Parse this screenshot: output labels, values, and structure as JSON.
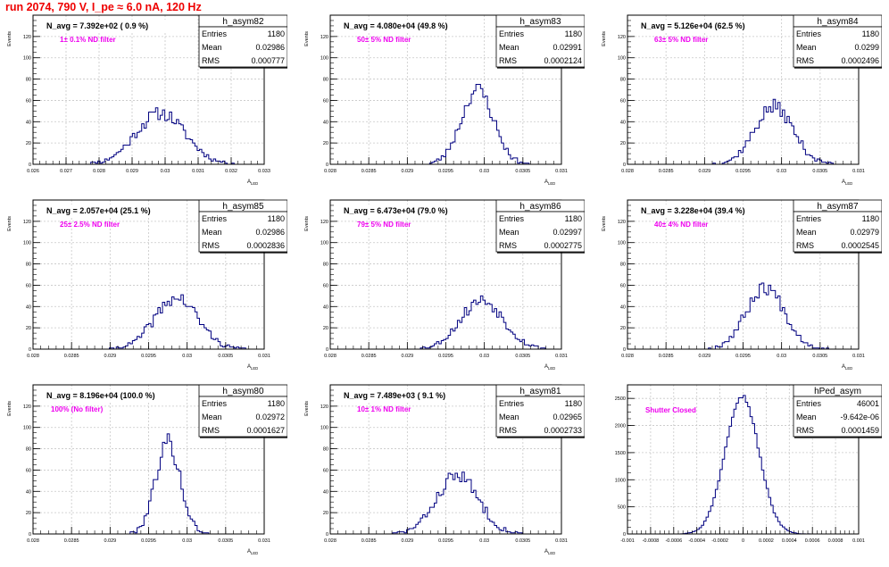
{
  "header": {
    "run_title": "run 2074,   790 V, I_pe ≈ 6.0 nA, 120 Hz"
  },
  "colors": {
    "histogram_line": "#000080",
    "annotation": "#ee00ee",
    "title": "#ee0000",
    "axes": "#000000",
    "grid": "#c8c8c8"
  },
  "chart_data": [
    {
      "type": "histogram",
      "hist_name": "h_asym82",
      "n_avg_label": "N_avg = 7.392e+02 ( 0.9 %)",
      "filter_label": "1± 0.1% ND filter",
      "stats": [
        [
          "Entries",
          "1180"
        ],
        [
          "Mean",
          "0.02986"
        ],
        [
          "RMS",
          "0.000777"
        ]
      ],
      "ylabel": "Events",
      "xlabel": "A_LED",
      "grid": true,
      "xlim": [
        0.026,
        0.033
      ],
      "ylim": [
        0,
        140
      ],
      "xticks": [
        "0.026",
        "0.027",
        "0.028",
        "0.029",
        "0.03",
        "0.031",
        "0.032",
        "0.033"
      ],
      "xtick_values": [
        0.026,
        0.027,
        0.028,
        0.029,
        0.03,
        0.031,
        0.032,
        0.033
      ],
      "yticks": [
        0,
        20,
        40,
        60,
        80,
        100,
        120
      ],
      "bin_width": 7e-05,
      "peaks": [
        {
          "mean": 0.02986,
          "sigma": 0.00075,
          "amp": 48
        }
      ],
      "seed": 11
    },
    {
      "type": "histogram",
      "hist_name": "h_asym83",
      "n_avg_label": "N_avg = 4.080e+04 (49.8 %)",
      "filter_label": "50± 5% ND filter",
      "stats": [
        [
          "Entries",
          "1180"
        ],
        [
          "Mean",
          "0.02991"
        ],
        [
          "RMS",
          "0.0002124"
        ]
      ],
      "ylabel": "Events",
      "xlabel": "A_LED",
      "grid": true,
      "xlim": [
        0.028,
        0.031
      ],
      "ylim": [
        0,
        140
      ],
      "xticks": [
        "0.028",
        "0.0285",
        "0.029",
        "0.0295",
        "0.03",
        "0.0305",
        "0.031"
      ],
      "xtick_values": [
        0.028,
        0.0285,
        0.029,
        0.0295,
        0.03,
        0.0305,
        0.031
      ],
      "yticks": [
        0,
        20,
        40,
        60,
        80,
        100,
        120
      ],
      "bin_width": 3e-05,
      "peaks": [
        {
          "mean": 0.02991,
          "sigma": 0.00021,
          "amp": 70
        }
      ],
      "seed": 23
    },
    {
      "type": "histogram",
      "hist_name": "h_asym84",
      "n_avg_label": "N_avg = 5.126e+04 (62.5 %)",
      "filter_label": "63± 5% ND filter",
      "stats": [
        [
          "Entries",
          "1180"
        ],
        [
          "Mean",
          "0.0299"
        ],
        [
          "RMS",
          "0.0002496"
        ]
      ],
      "ylabel": "Events",
      "xlabel": "A_LED",
      "grid": true,
      "xlim": [
        0.028,
        0.031
      ],
      "ylim": [
        0,
        140
      ],
      "xticks": [
        "0.028",
        "0.0285",
        "0.029",
        "0.0295",
        "0.03",
        "0.0305",
        "0.031"
      ],
      "xtick_values": [
        0.028,
        0.0285,
        0.029,
        0.0295,
        0.03,
        0.0305,
        0.031
      ],
      "yticks": [
        0,
        20,
        40,
        60,
        80,
        100,
        120
      ],
      "bin_width": 3e-05,
      "peaks": [
        {
          "mean": 0.0299,
          "sigma": 0.00025,
          "amp": 54
        }
      ],
      "seed": 37
    },
    {
      "type": "histogram",
      "hist_name": "h_asym85",
      "n_avg_label": "N_avg = 2.057e+04 (25.1 %)",
      "filter_label": "25± 2.5% ND filter",
      "stats": [
        [
          "Entries",
          "1180"
        ],
        [
          "Mean",
          "0.02986"
        ],
        [
          "RMS",
          "0.0002836"
        ]
      ],
      "ylabel": "Events",
      "xlabel": "A_LED",
      "grid": true,
      "xlim": [
        0.028,
        0.031
      ],
      "ylim": [
        0,
        140
      ],
      "xticks": [
        "0.028",
        "0.0285",
        "0.029",
        "0.0295",
        "0.03",
        "0.0305",
        "0.031"
      ],
      "xtick_values": [
        0.028,
        0.0285,
        0.029,
        0.0295,
        0.03,
        0.0305,
        0.031
      ],
      "yticks": [
        0,
        20,
        40,
        60,
        80,
        100,
        120
      ],
      "bin_width": 3e-05,
      "peaks": [
        {
          "mean": 0.02986,
          "sigma": 0.00028,
          "amp": 48
        }
      ],
      "seed": 41
    },
    {
      "type": "histogram",
      "hist_name": "h_asym86",
      "n_avg_label": "N_avg = 6.473e+04 (79.0 %)",
      "filter_label": "79± 5% ND filter",
      "stats": [
        [
          "Entries",
          "1180"
        ],
        [
          "Mean",
          "0.02997"
        ],
        [
          "RMS",
          "0.0002775"
        ]
      ],
      "ylabel": "Events",
      "xlabel": "A_LED",
      "grid": true,
      "xlim": [
        0.028,
        0.031
      ],
      "ylim": [
        0,
        140
      ],
      "xticks": [
        "0.028",
        "0.0285",
        "0.029",
        "0.0295",
        "0.03",
        "0.0305",
        "0.031"
      ],
      "xtick_values": [
        0.028,
        0.0285,
        0.029,
        0.0295,
        0.03,
        0.0305,
        0.031
      ],
      "yticks": [
        0,
        20,
        40,
        60,
        80,
        100,
        120
      ],
      "bin_width": 3e-05,
      "peaks": [
        {
          "mean": 0.02997,
          "sigma": 0.00028,
          "amp": 46
        }
      ],
      "seed": 53
    },
    {
      "type": "histogram",
      "hist_name": "h_asym87",
      "n_avg_label": "N_avg = 3.228e+04 (39.4 %)",
      "filter_label": "40± 4% ND filter",
      "stats": [
        [
          "Entries",
          "1180"
        ],
        [
          "Mean",
          "0.02979"
        ],
        [
          "RMS",
          "0.0002545"
        ]
      ],
      "ylabel": "Events",
      "xlabel": "A_LED",
      "grid": true,
      "xlim": [
        0.028,
        0.031
      ],
      "ylim": [
        0,
        140
      ],
      "xticks": [
        "0.028",
        "0.0285",
        "0.029",
        "0.0295",
        "0.03",
        "0.0305",
        "0.031"
      ],
      "xtick_values": [
        0.028,
        0.0285,
        0.029,
        0.0295,
        0.03,
        0.0305,
        0.031
      ],
      "yticks": [
        0,
        20,
        40,
        60,
        80,
        100,
        120
      ],
      "bin_width": 3e-05,
      "peaks": [
        {
          "mean": 0.02979,
          "sigma": 0.00025,
          "amp": 58
        }
      ],
      "seed": 67
    },
    {
      "type": "histogram",
      "hist_name": "h_asym80",
      "n_avg_label": "N_avg = 8.196e+04 (100.0 %)",
      "filter_label": "100% (No filter)",
      "stats": [
        [
          "Entries",
          "1180"
        ],
        [
          "Mean",
          "0.02972"
        ],
        [
          "RMS",
          "0.0001627"
        ]
      ],
      "ylabel": "Events",
      "xlabel": "A_LED",
      "grid": true,
      "xlim": [
        0.028,
        0.031
      ],
      "ylim": [
        0,
        140
      ],
      "xticks": [
        "0.028",
        "0.0285",
        "0.029",
        "0.0295",
        "0.03",
        "0.0305",
        "0.031"
      ],
      "xtick_values": [
        0.028,
        0.0285,
        0.029,
        0.0295,
        0.03,
        0.0305,
        0.031
      ],
      "yticks": [
        0,
        20,
        40,
        60,
        80,
        100,
        120
      ],
      "bin_width": 3e-05,
      "peaks": [
        {
          "mean": 0.02975,
          "sigma": 0.00016,
          "amp": 86
        }
      ],
      "seed": 79
    },
    {
      "type": "histogram",
      "hist_name": "h_asym81",
      "n_avg_label": "N_avg = 7.489e+03 ( 9.1 %)",
      "filter_label": "10± 1% ND filter",
      "stats": [
        [
          "Entries",
          "1180"
        ],
        [
          "Mean",
          "0.02965"
        ],
        [
          "RMS",
          "0.0002733"
        ]
      ],
      "ylabel": "Events",
      "xlabel": "A_LED",
      "grid": true,
      "xlim": [
        0.028,
        0.031
      ],
      "ylim": [
        0,
        140
      ],
      "xticks": [
        "0.028",
        "0.0285",
        "0.029",
        "0.0295",
        "0.03",
        "0.0305",
        "0.031"
      ],
      "xtick_values": [
        0.028,
        0.0285,
        0.029,
        0.0295,
        0.03,
        0.0305,
        0.031
      ],
      "yticks": [
        0,
        20,
        40,
        60,
        80,
        100,
        120
      ],
      "bin_width": 3e-05,
      "peaks": [
        {
          "mean": 0.02965,
          "sigma": 0.00027,
          "amp": 55
        }
      ],
      "seed": 83
    },
    {
      "type": "histogram",
      "hist_name": "hPed_asym",
      "n_avg_label": "",
      "filter_label": "Shutter Closed",
      "stats": [
        [
          "Entries",
          "46001"
        ],
        [
          "Mean",
          "-9.642e-06"
        ],
        [
          "RMS",
          "0.0001459"
        ]
      ],
      "ylabel": "",
      "xlabel": "",
      "grid": true,
      "xlim": [
        -0.001,
        0.001
      ],
      "ylim": [
        0,
        2750
      ],
      "xticks": [
        "-0.001",
        "-0.0008",
        "-0.0006",
        "-0.0004",
        "-0.0002",
        "0",
        "0.0002",
        "0.0004",
        "0.0006",
        "0.0008",
        "0.001"
      ],
      "xtick_values": [
        -0.001,
        -0.0008,
        -0.0006,
        -0.0004,
        -0.0002,
        0,
        0.0002,
        0.0004,
        0.0006,
        0.0008,
        0.001
      ],
      "yticks": [
        0,
        500,
        1000,
        1500,
        2000,
        2500
      ],
      "bin_width": 2e-05,
      "peaks": [
        {
          "mean": -1e-05,
          "sigma": 0.000146,
          "amp": 2550
        }
      ],
      "seed": 97
    }
  ]
}
